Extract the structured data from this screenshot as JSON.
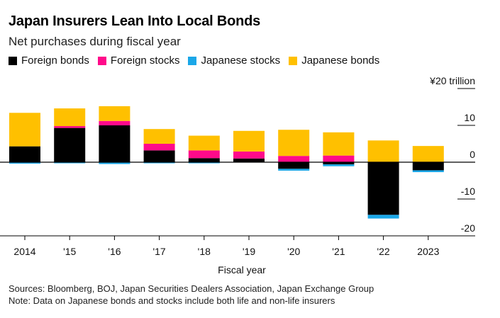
{
  "title": "Japan Insurers Lean Into Local Bonds",
  "subtitle": "Net purchases during fiscal year",
  "legend": [
    {
      "label": "Foreign bonds",
      "color": "#000000"
    },
    {
      "label": "Foreign stocks",
      "color": "#ff0a8a"
    },
    {
      "label": "Japanese stocks",
      "color": "#1aa7e8"
    },
    {
      "label": "Japanese bonds",
      "color": "#ffc000"
    }
  ],
  "footer": {
    "sources": "Sources: Bloomberg, BOJ, Japan Securities Dealers Association, Japan Exchange Group",
    "note": "Note: Data on Japanese bonds and stocks include both life and non-life insurers"
  },
  "chart_data": {
    "type": "bar",
    "stacked": true,
    "title": "Japan Insurers Lean Into Local Bonds",
    "subtitle": "Net purchases during fiscal year",
    "xlabel": "Fiscal year",
    "ylabel": "",
    "y_unit_label": "¥20 trillion",
    "ylim": [
      -22,
      22
    ],
    "y_ticks": [
      20,
      10,
      0,
      -10,
      -20
    ],
    "y_tick_labels": [
      "¥20 trillion",
      "10",
      "0",
      "-10",
      "-20"
    ],
    "grid": true,
    "legend_position": "top-left",
    "categories": [
      "2014",
      "'15",
      "'16",
      "'17",
      "'18",
      "'19",
      "'20",
      "'21",
      "'22",
      "2023"
    ],
    "series": [
      {
        "name": "Foreign bonds",
        "color": "#000000",
        "values": [
          4.3,
          9.3,
          10.0,
          3.2,
          1.1,
          1.0,
          -1.8,
          -0.6,
          -14.3,
          -2.2
        ]
      },
      {
        "name": "Foreign stocks",
        "color": "#ff0a8a",
        "values": [
          0.0,
          0.5,
          1.2,
          1.8,
          2.1,
          1.9,
          1.7,
          1.8,
          0.0,
          0.0
        ]
      },
      {
        "name": "Japanese stocks",
        "color": "#1aa7e8",
        "values": [
          -0.4,
          -0.3,
          -0.5,
          -0.3,
          -0.3,
          0.0,
          -0.5,
          -0.5,
          -1.0,
          -0.5
        ]
      },
      {
        "name": "Japanese bonds",
        "color": "#ffc000",
        "values": [
          9.1,
          4.8,
          4.0,
          4.0,
          4.0,
          5.6,
          7.1,
          6.3,
          5.9,
          4.4
        ]
      }
    ]
  }
}
